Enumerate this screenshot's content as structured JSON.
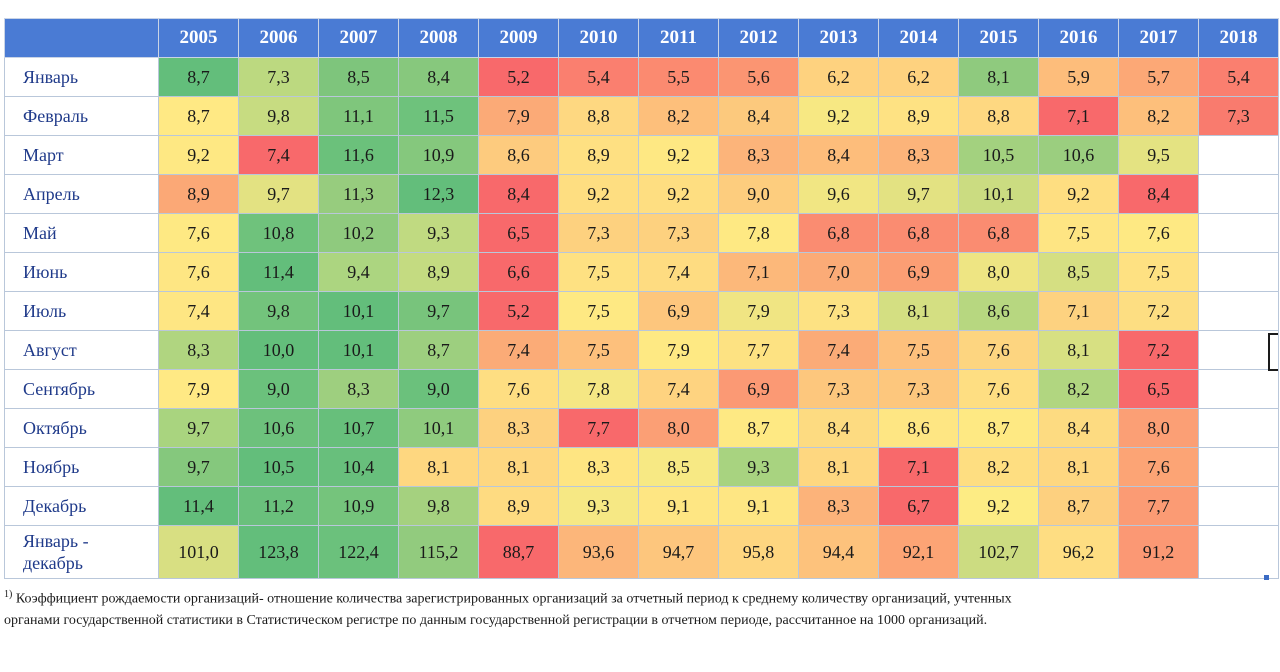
{
  "table": {
    "years": [
      "2005",
      "2006",
      "2007",
      "2008",
      "2009",
      "2010",
      "2011",
      "2012",
      "2013",
      "2014",
      "2015",
      "2016",
      "2017",
      "2018"
    ],
    "rows": [
      {
        "label": "Январь",
        "values": [
          "8,7",
          "7,3",
          "8,5",
          "8,4",
          "5,2",
          "5,4",
          "5,5",
          "5,6",
          "6,2",
          "6,2",
          "8,1",
          "5,9",
          "5,7",
          "5,4"
        ],
        "colors": [
          "#63be7b",
          "#bcd980",
          "#7ec57c",
          "#87c87d",
          "#f8696b",
          "#fa7f6f",
          "#fb8a70",
          "#fb9572",
          "#fed27f",
          "#fed27f",
          "#8fca7e",
          "#fdbd7b",
          "#fca876",
          "#fa7f6f"
        ]
      },
      {
        "label": "Февраль",
        "values": [
          "8,7",
          "9,8",
          "11,1",
          "11,5",
          "7,9",
          "8,8",
          "8,2",
          "8,4",
          "9,2",
          "8,9",
          "8,8",
          "7,1",
          "8,2",
          "7,3"
        ],
        "colors": [
          "#ffe984",
          "#c7dc81",
          "#7fc67c",
          "#6ec27c",
          "#fbaa77",
          "#fed881",
          "#fdbf7b",
          "#fcc97d",
          "#f7e883",
          "#fee283",
          "#fed881",
          "#f8696b",
          "#fdbf7b",
          "#f97b6e"
        ]
      },
      {
        "label": "Март",
        "values": [
          "9,2",
          "7,4",
          "11,6",
          "10,9",
          "8,6",
          "8,9",
          "9,2",
          "8,3",
          "8,4",
          "8,3",
          "10,5",
          "10,6",
          "9,5",
          ""
        ],
        "colors": [
          "#fee883",
          "#f8696b",
          "#6bc17b",
          "#85c87d",
          "#fdcb7e",
          "#fee082",
          "#fee883",
          "#fcb47a",
          "#fdbd7b",
          "#fcb47a",
          "#a3d17f",
          "#9bce7f",
          "#e4e382",
          ""
        ]
      },
      {
        "label": "Апрель",
        "values": [
          "8,9",
          "9,7",
          "11,3",
          "12,3",
          "8,4",
          "9,2",
          "9,2",
          "9,0",
          "9,6",
          "9,7",
          "10,1",
          "9,2",
          "8,4",
          ""
        ],
        "colors": [
          "#fba876",
          "#e3e282",
          "#97cc7e",
          "#63be7b",
          "#f8696b",
          "#fede81",
          "#fede81",
          "#fdcd7e",
          "#f1e683",
          "#e3e282",
          "#cbdc81",
          "#fede81",
          "#f8696b",
          ""
        ]
      },
      {
        "label": "Май",
        "values": [
          "7,6",
          "10,8",
          "10,2",
          "9,3",
          "6,5",
          "7,3",
          "7,3",
          "7,8",
          "6,8",
          "6,8",
          "6,8",
          "7,5",
          "7,6",
          ""
        ],
        "colors": [
          "#fee983",
          "#6fc27c",
          "#8fca7e",
          "#c0da81",
          "#f8696b",
          "#fdd17f",
          "#fdd17f",
          "#fee983",
          "#fa8c71",
          "#fa8c71",
          "#fa8c71",
          "#fee583",
          "#fee983",
          ""
        ]
      },
      {
        "label": "Июнь",
        "values": [
          "7,6",
          "11,4",
          "9,4",
          "8,9",
          "6,6",
          "7,5",
          "7,4",
          "7,1",
          "7,0",
          "6,9",
          "8,0",
          "8,5",
          "7,5",
          ""
        ],
        "colors": [
          "#fee683",
          "#63be7b",
          "#acd580",
          "#c4db81",
          "#f8696b",
          "#fee182",
          "#fedc81",
          "#fcb87a",
          "#fbab77",
          "#fb9e74",
          "#eee583",
          "#d5df82",
          "#fee182",
          ""
        ]
      },
      {
        "label": "Июль",
        "values": [
          "7,4",
          "9,8",
          "10,1",
          "9,7",
          "5,2",
          "7,5",
          "6,9",
          "7,9",
          "7,3",
          "8,1",
          "8,6",
          "7,1",
          "7,2",
          ""
        ],
        "colors": [
          "#fee683",
          "#73c37c",
          "#63be7b",
          "#78c47c",
          "#f8696b",
          "#fee983",
          "#fdc67d",
          "#f0e583",
          "#fde283",
          "#d4df82",
          "#b7d780",
          "#fdd280",
          "#fdde82",
          ""
        ]
      },
      {
        "label": "Август",
        "values": [
          "8,3",
          "10,0",
          "10,1",
          "8,7",
          "7,4",
          "7,5",
          "7,9",
          "7,7",
          "7,4",
          "7,5",
          "7,6",
          "8,1",
          "7,2",
          ""
        ],
        "colors": [
          "#b0d580",
          "#63be7b",
          "#63be7b",
          "#9dcf7f",
          "#fbab77",
          "#fdc07c",
          "#fee983",
          "#fde282",
          "#fbab77",
          "#fdc07c",
          "#fdd580",
          "#d7e082",
          "#f8696b",
          ""
        ]
      },
      {
        "label": "Сентябрь",
        "values": [
          "7,9",
          "9,0",
          "8,3",
          "9,0",
          "7,6",
          "7,8",
          "7,4",
          "6,9",
          "7,3",
          "7,3",
          "7,6",
          "8,2",
          "6,5",
          ""
        ],
        "colors": [
          "#ffe984",
          "#6bc17c",
          "#9ecf7f",
          "#6bc17c",
          "#fede82",
          "#f5e784",
          "#fed380",
          "#fb9974",
          "#fdc77d",
          "#fdc77d",
          "#fede82",
          "#b1d680",
          "#f8696b",
          ""
        ]
      },
      {
        "label": "Октябрь",
        "values": [
          "9,7",
          "10,6",
          "10,7",
          "10,1",
          "8,3",
          "7,7",
          "8,0",
          "8,7",
          "8,4",
          "8,6",
          "8,7",
          "8,4",
          "8,0",
          ""
        ],
        "colors": [
          "#a9d47f",
          "#6dc17c",
          "#67bf7b",
          "#8fcb7e",
          "#fdd17f",
          "#f8696b",
          "#fb9f75",
          "#fee983",
          "#fddb81",
          "#fee683",
          "#fee983",
          "#fddb81",
          "#fb9f75",
          ""
        ]
      },
      {
        "label": "Ноябрь",
        "values": [
          "9,7",
          "10,5",
          "10,4",
          "8,1",
          "8,1",
          "8,3",
          "8,5",
          "9,3",
          "8,1",
          "7,1",
          "8,2",
          "8,1",
          "7,6",
          ""
        ],
        "colors": [
          "#85c87d",
          "#63be7b",
          "#68bf7c",
          "#fed780",
          "#fed780",
          "#fee582",
          "#f7e984",
          "#a8d380",
          "#fed780",
          "#f8696b",
          "#fede81",
          "#fed780",
          "#fca475",
          ""
        ]
      },
      {
        "label": "Декабрь",
        "values": [
          "11,4",
          "11,2",
          "10,9",
          "9,8",
          "8,9",
          "9,3",
          "9,1",
          "9,1",
          "8,3",
          "6,7",
          "9,2",
          "8,7",
          "7,7",
          ""
        ],
        "colors": [
          "#63be7b",
          "#6ac07c",
          "#75c47c",
          "#a5d17f",
          "#fedb81",
          "#f6e884",
          "#fee683",
          "#fee683",
          "#fcb37a",
          "#f8696b",
          "#fdec84",
          "#fdd07f",
          "#fb9b74",
          ""
        ]
      },
      {
        "label": "Январь -\nдекабрь",
        "values": [
          "101,0",
          "123,8",
          "122,4",
          "115,2",
          "88,7",
          "93,6",
          "94,7",
          "95,8",
          "94,4",
          "92,1",
          "102,7",
          "96,2",
          "91,2",
          ""
        ],
        "colors": [
          "#d8df82",
          "#63be7b",
          "#6bc17c",
          "#92cb7e",
          "#f8696b",
          "#fcb67a",
          "#fdc67d",
          "#fed680",
          "#fdc27c",
          "#fca475",
          "#ccdc81",
          "#fedd82",
          "#fb9874",
          ""
        ]
      }
    ]
  },
  "footnote": {
    "sup": "1)",
    "text": " Коэффициент рождаемости организаций- отношение количества зарегистрированных организаций за отчетный период к среднему количеству организаций, учтенных органами государственной статистики в Статистическом регистре по данным государственной регистрации в отчетном периоде, рассчитанное на 1000 организаций."
  }
}
